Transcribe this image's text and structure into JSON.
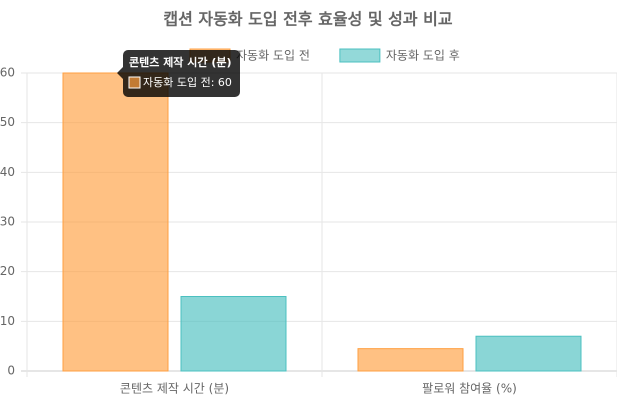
{
  "chart_data": {
    "type": "bar",
    "title": "캡션 자동화 도입 전후 효율성 및 성과 비교",
    "categories": [
      "콘텐츠 제작 시간 (분)",
      "팔로워 참여율 (%)"
    ],
    "series": [
      {
        "name": "자동화 도입 전",
        "color": "#ff9f40",
        "values": [
          60,
          4.5
        ]
      },
      {
        "name": "자동화 도입 후",
        "color": "#4bc0c0",
        "values": [
          15,
          7
        ]
      }
    ],
    "ylim": [
      0,
      60
    ],
    "yticks": [
      0,
      10,
      20,
      30,
      40,
      50,
      60
    ],
    "grid": true,
    "legend": "top",
    "tooltip": {
      "title": "콘텐츠 제작 시간 (분)",
      "label": "자동화 도입 전: 60"
    }
  }
}
